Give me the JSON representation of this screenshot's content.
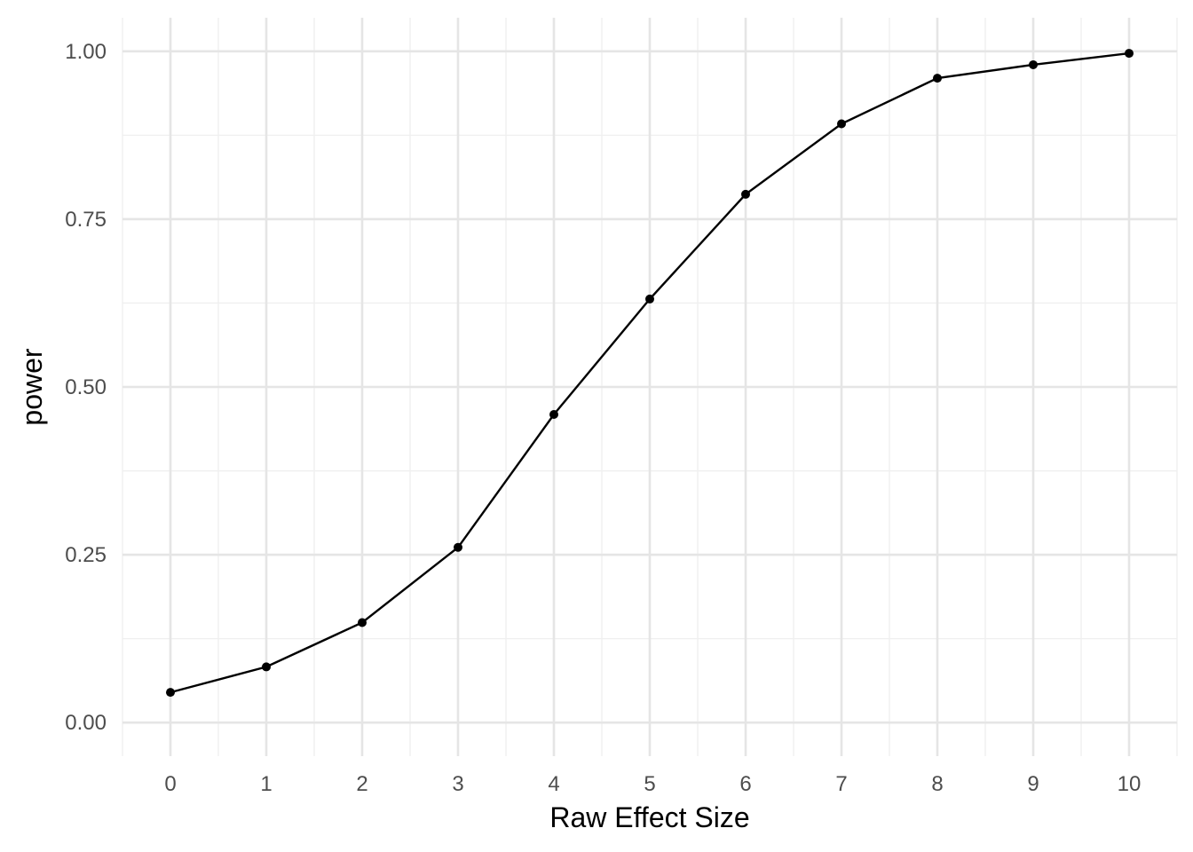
{
  "chart_data": {
    "type": "line",
    "title": "",
    "xlabel": "Raw Effect Size",
    "ylabel": "power",
    "x": [
      0,
      1,
      2,
      3,
      4,
      5,
      6,
      7,
      8,
      9,
      10
    ],
    "series": [
      {
        "values": [
          0.045,
          0.083,
          0.149,
          0.261,
          0.459,
          0.631,
          0.787,
          0.892,
          0.96,
          0.98,
          0.997
        ]
      }
    ],
    "x_ticks": [
      0,
      1,
      2,
      3,
      4,
      5,
      6,
      7,
      8,
      9,
      10
    ],
    "x_tick_labels": [
      "0",
      "1",
      "2",
      "3",
      "4",
      "5",
      "6",
      "7",
      "8",
      "9",
      "10"
    ],
    "y_ticks": [
      0,
      0.25,
      0.5,
      0.75,
      1
    ],
    "y_tick_labels": [
      "0.00",
      "0.25",
      "0.50",
      "0.75",
      "1.00"
    ],
    "xlim": [
      -0.5,
      10.5
    ],
    "ylim": [
      -0.05,
      1.05
    ],
    "grid": true,
    "legend": "none",
    "colors": {
      "line": "#000000",
      "points": "#000000",
      "grid_major": "#e5e5e5",
      "grid_minor": "#efefef",
      "tick_label": "#4d4d4d"
    }
  }
}
